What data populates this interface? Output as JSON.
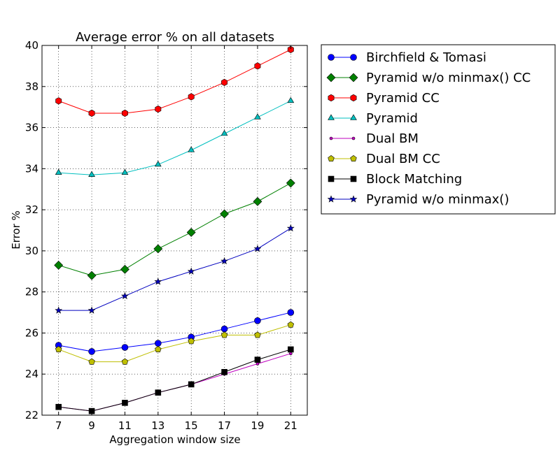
{
  "chart_data": {
    "type": "line",
    "title": "Average error % on all datasets",
    "xlabel": "Aggregation window size",
    "ylabel": "Error %",
    "x": [
      7,
      9,
      11,
      13,
      15,
      17,
      19,
      21
    ],
    "xlim": [
      6,
      22
    ],
    "ylim": [
      22,
      40
    ],
    "xticks": [
      "7",
      "9",
      "11",
      "13",
      "15",
      "17",
      "19",
      "21"
    ],
    "yticks": [
      "22",
      "24",
      "26",
      "28",
      "30",
      "32",
      "34",
      "36",
      "38",
      "40"
    ],
    "grid": true,
    "legend_position": "outside-right",
    "series": [
      {
        "name": "Birchfield & Tomasi",
        "color": "#0000ff",
        "marker": "circle",
        "values": [
          25.4,
          25.1,
          25.3,
          25.5,
          25.8,
          26.2,
          26.6,
          27.0
        ]
      },
      {
        "name": "Pyramid w/o minmax() CC",
        "color": "#008000",
        "marker": "diamond",
        "values": [
          29.3,
          28.8,
          29.1,
          30.1,
          30.9,
          31.8,
          32.4,
          33.3
        ]
      },
      {
        "name": "Pyramid CC",
        "color": "#ff0000",
        "marker": "hexagon",
        "values": [
          37.3,
          36.7,
          36.7,
          36.9,
          37.5,
          38.2,
          39.0,
          39.8
        ]
      },
      {
        "name": "Pyramid",
        "color": "#00bfbf",
        "marker": "triangle",
        "values": [
          33.8,
          33.7,
          33.8,
          34.2,
          34.9,
          35.7,
          36.5,
          37.3
        ]
      },
      {
        "name": "Dual BM",
        "color": "#bf00bf",
        "marker": "point",
        "values": [
          22.4,
          22.2,
          22.6,
          23.1,
          23.5,
          24.0,
          24.5,
          25.0
        ]
      },
      {
        "name": "Dual BM CC",
        "color": "#bfbf00",
        "marker": "pentagon",
        "values": [
          25.2,
          24.6,
          24.6,
          25.2,
          25.6,
          25.9,
          25.9,
          26.4
        ]
      },
      {
        "name": "Block Matching",
        "color": "#000000",
        "marker": "square",
        "values": [
          22.4,
          22.2,
          22.6,
          23.1,
          23.5,
          24.1,
          24.7,
          25.2
        ]
      },
      {
        "name": "Pyramid w/o minmax()",
        "color": "#0000bf",
        "marker": "star",
        "values": [
          27.1,
          27.1,
          27.8,
          28.5,
          29.0,
          29.5,
          30.1,
          31.1
        ]
      }
    ]
  }
}
